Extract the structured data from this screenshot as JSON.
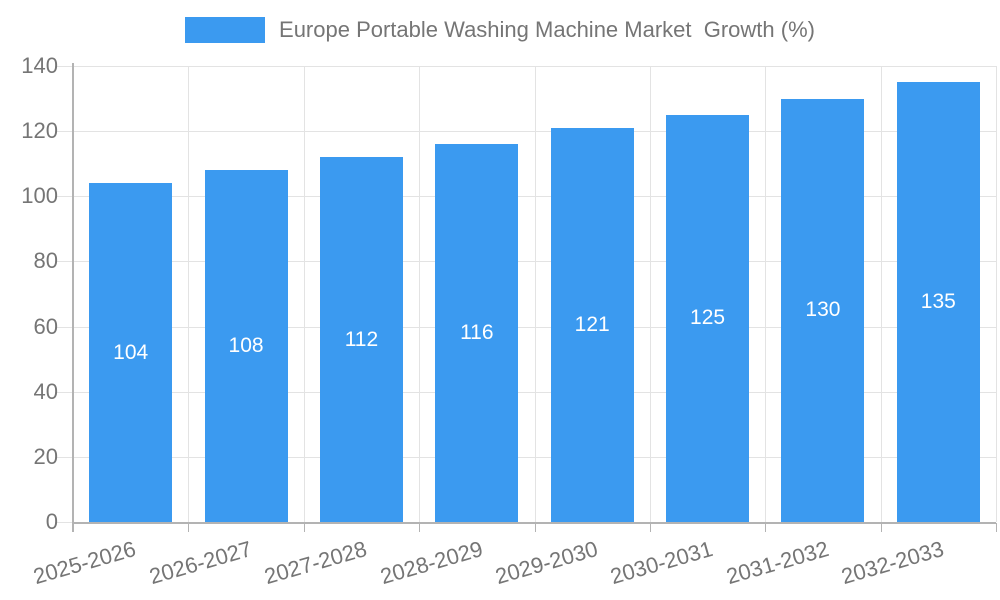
{
  "chart_data": {
    "type": "bar",
    "title": "Europe Portable Washing Machine Market  Growth (%)",
    "legend": {
      "label": "Europe Portable Washing Machine Market  Growth (%)",
      "position": "top-center"
    },
    "categories": [
      "2025-2026",
      "2026-2027",
      "2027-2028",
      "2028-2029",
      "2029-2030",
      "2030-2031",
      "2031-2032",
      "2032-2033"
    ],
    "values": [
      104,
      108,
      112,
      116,
      121,
      125,
      130,
      135
    ],
    "xlabel": "",
    "ylabel": "",
    "ylim": [
      0,
      140
    ],
    "yticks": [
      0,
      20,
      40,
      60,
      80,
      100,
      120,
      140
    ],
    "grid": true,
    "legend_position": "top-center",
    "colors": {
      "bar": "#3b9af0",
      "value_label": "#ffffff",
      "axis": "#b3b3b3",
      "grid": "#e3e3e3",
      "tick_text": "#757575",
      "background": "#ffffff"
    }
  }
}
